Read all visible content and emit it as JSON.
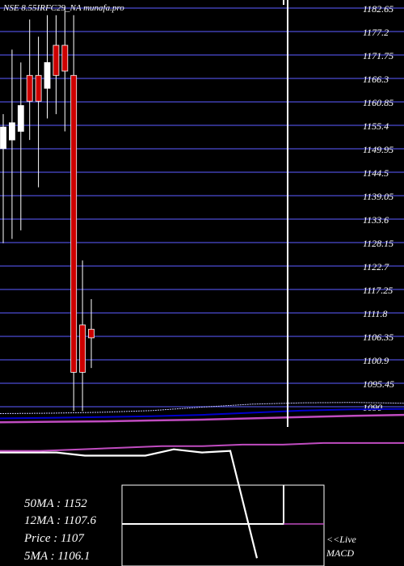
{
  "title": "NSE 8.55IRFC29_NA munafa.pro",
  "colors": {
    "background": "#000000",
    "grid": "#3f3fb0",
    "up": "#ffffff",
    "down": "#cc0000",
    "ma_line": "#0000cc",
    "ma_line2": "#c0c0ff",
    "macd_line": "#c04cc0",
    "text": "#ffffff"
  },
  "chart_data": [
    {
      "type": "candlestick",
      "title": "NSE 8.55IRFC29_NA munafa.pro",
      "y_axis_side": "right",
      "ylim": [
        1087,
        1184
      ],
      "y_ticks": [
        "1182.65",
        "1177.2",
        "1171.75",
        "1166.3",
        "1160.85",
        "1155.4",
        "1149.95",
        "1144.5",
        "1139.05",
        "1133.6",
        "1128.15",
        "1122.7",
        "1117.25",
        "1111.8",
        "1106.35",
        "1100.9",
        "1095.45",
        "1090"
      ],
      "candles": [
        {
          "o": 1150,
          "h": 1158,
          "l": 1128,
          "c": 1155,
          "dir": "up"
        },
        {
          "o": 1152,
          "h": 1173,
          "l": 1129,
          "c": 1156,
          "dir": "up"
        },
        {
          "o": 1154,
          "h": 1170,
          "l": 1131,
          "c": 1160,
          "dir": "up"
        },
        {
          "o": 1167,
          "h": 1180,
          "l": 1152,
          "c": 1161,
          "dir": "down"
        },
        {
          "o": 1167,
          "h": 1176,
          "l": 1141,
          "c": 1161,
          "dir": "down"
        },
        {
          "o": 1164,
          "h": 1181,
          "l": 1157,
          "c": 1170,
          "dir": "up"
        },
        {
          "o": 1174,
          "h": 1181,
          "l": 1158,
          "c": 1167,
          "dir": "down"
        },
        {
          "o": 1174,
          "h": 1183,
          "l": 1154,
          "c": 1168,
          "dir": "down"
        },
        {
          "o": 1167,
          "h": 1181,
          "l": 1089,
          "c": 1098,
          "dir": "down"
        },
        {
          "o": 1109,
          "h": 1124,
          "l": 1089,
          "c": 1098,
          "dir": "down"
        },
        {
          "o": 1108,
          "h": 1115,
          "l": 1099,
          "c": 1106,
          "dir": "down"
        }
      ],
      "ma_lines": [
        {
          "values": [
            1087.3,
            1087.4,
            1087.6,
            1087.8,
            1088.1,
            1088.6,
            1089.1,
            1089.4,
            1089.5
          ]
        },
        {
          "values": [
            1088.4,
            1088.5,
            1088.7,
            1089.1,
            1089.9,
            1090.6,
            1090.9,
            1091.0,
            1090.8
          ]
        },
        {
          "values": [
            1086.4,
            1086.5,
            1086.6,
            1086.8,
            1087.0,
            1087.3,
            1087.6,
            1087.9,
            1088.1
          ]
        }
      ]
    },
    {
      "type": "line",
      "label": "MACD",
      "series": [
        {
          "values": [
            0.72,
            0.72,
            0.7,
            0.7,
            0.73,
            0.73,
            0.62,
            0.64,
            0.63,
            0.1,
            0.1
          ]
        },
        {
          "values": [
            0.73,
            0.73,
            0.74,
            0.75,
            0.76,
            0.76,
            0.77,
            0.77,
            0.78,
            0.78,
            0.78
          ]
        }
      ]
    }
  ],
  "stats": {
    "ma50": "50MA : 1152",
    "ma12": "12MA : 1107.6",
    "price": "Price   : 1107",
    "ma5": "5MA : 1106.1"
  },
  "live_label": "<<Live",
  "macd_label": "MACD"
}
